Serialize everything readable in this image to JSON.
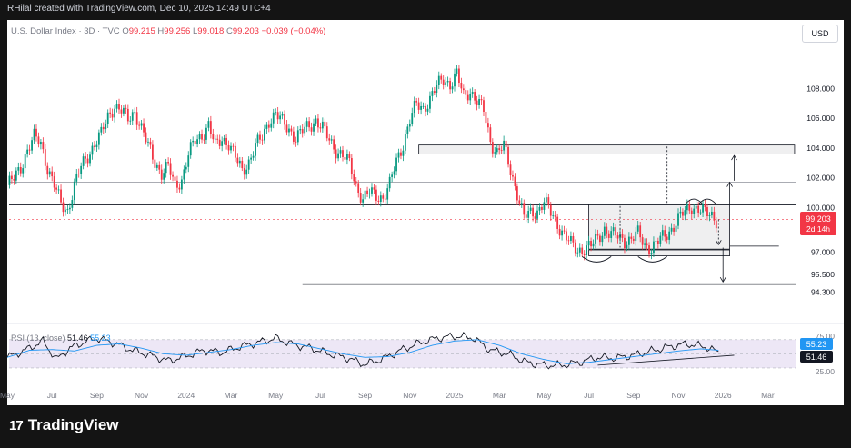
{
  "header": {
    "attribution": "RHilal created with TradingView.com, Dec 10, 2025 14:49 UTC+4"
  },
  "legend": {
    "symbol": "U.S. Dollar Index · 3D · TVC",
    "open_label": "O",
    "open": "99.215",
    "high_label": "H",
    "high": "99.256",
    "low_label": "L",
    "low": "99.018",
    "close_label": "C",
    "close": "99.203",
    "change": "−0.039 (−0.04%)"
  },
  "currency_button": "USD",
  "price_badge": {
    "price": "99.203",
    "countdown": "2d 14h"
  },
  "rsi_legend": {
    "label": "RSI (13, close)",
    "rsi": "51.46",
    "ma": "55.23"
  },
  "rsi_badges": {
    "ma": "55.23",
    "rsi": "51.46"
  },
  "brand": {
    "logo": "17",
    "name": "TradingView"
  },
  "colors": {
    "up": "#089981",
    "down": "#f23645",
    "rsi": "#131722",
    "rsi_ma": "#2196f3",
    "band": "#ede7f6"
  },
  "chart_data": {
    "type": "candlestick",
    "y_axis": {
      "ticks": [
        "108.000",
        "106.000",
        "104.000",
        "102.000",
        "100.000",
        "97.000",
        "95.500",
        "94.300"
      ],
      "tick_values": [
        108,
        106,
        104,
        102,
        100,
        97,
        95.5,
        94.3
      ],
      "ylim": [
        93.3,
        110.9
      ]
    },
    "x_axis": {
      "ticks": [
        "May",
        "Jul",
        "Sep",
        "Nov",
        "2024",
        "Mar",
        "May",
        "Jul",
        "Sep",
        "Nov",
        "2025",
        "Mar",
        "May",
        "Jul",
        "Sep",
        "Nov",
        "2026",
        "Mar"
      ],
      "tick_index": [
        0,
        20,
        40,
        60,
        80,
        100,
        120,
        140,
        160,
        180,
        200,
        220,
        240,
        260,
        280,
        300,
        320,
        340
      ]
    },
    "close_path": [
      [
        0,
        101.5
      ],
      [
        3,
        101.9
      ],
      [
        6,
        102.7
      ],
      [
        9,
        103.9
      ],
      [
        12,
        104.7
      ],
      [
        15,
        104.3
      ],
      [
        18,
        102.7
      ],
      [
        21,
        101.5
      ],
      [
        24,
        100.2
      ],
      [
        27,
        99.8
      ],
      [
        30,
        101.5
      ],
      [
        33,
        102.7
      ],
      [
        36,
        103.5
      ],
      [
        39,
        104.3
      ],
      [
        42,
        104.9
      ],
      [
        45,
        106.1
      ],
      [
        48,
        106.9
      ],
      [
        51,
        106.5
      ],
      [
        54,
        105.9
      ],
      [
        57,
        106.5
      ],
      [
        60,
        105.3
      ],
      [
        63,
        104.1
      ],
      [
        66,
        103.1
      ],
      [
        69,
        102.3
      ],
      [
        72,
        102.7
      ],
      [
        75,
        101.5
      ],
      [
        78,
        101.9
      ],
      [
        81,
        103.5
      ],
      [
        84,
        104.5
      ],
      [
        87,
        104.9
      ],
      [
        90,
        105.5
      ],
      [
        93,
        104.1
      ],
      [
        96,
        104.7
      ],
      [
        99,
        104.3
      ],
      [
        102,
        103.3
      ],
      [
        105,
        102.5
      ],
      [
        108,
        103.1
      ],
      [
        111,
        104.1
      ],
      [
        114,
        104.7
      ],
      [
        117,
        105.9
      ],
      [
        120,
        106.3
      ],
      [
        123,
        105.7
      ],
      [
        126,
        105.3
      ],
      [
        129,
        104.7
      ],
      [
        132,
        105.1
      ],
      [
        135,
        105.5
      ],
      [
        138,
        105.9
      ],
      [
        141,
        105.3
      ],
      [
        144,
        104.5
      ],
      [
        147,
        103.9
      ],
      [
        150,
        103.5
      ],
      [
        153,
        102.9
      ],
      [
        156,
        101.5
      ],
      [
        159,
        100.6
      ],
      [
        162,
        101.0
      ],
      [
        165,
        100.8
      ],
      [
        168,
        100.7
      ],
      [
        171,
        101.5
      ],
      [
        174,
        103.1
      ],
      [
        177,
        104.3
      ],
      [
        180,
        105.9
      ],
      [
        183,
        106.9
      ],
      [
        186,
        106.7
      ],
      [
        189,
        107.3
      ],
      [
        192,
        108.1
      ],
      [
        195,
        108.7
      ],
      [
        198,
        108.3
      ],
      [
        201,
        108.9
      ],
      [
        204,
        107.5
      ],
      [
        207,
        107.9
      ],
      [
        210,
        107.1
      ],
      [
        213,
        106.5
      ],
      [
        216,
        104.5
      ],
      [
        219,
        103.7
      ],
      [
        222,
        104.1
      ],
      [
        225,
        102.5
      ],
      [
        228,
        101.0
      ],
      [
        231,
        99.3
      ],
      [
        234,
        99.6
      ],
      [
        237,
        99.8
      ],
      [
        240,
        100.4
      ],
      [
        243,
        99.6
      ],
      [
        246,
        98.9
      ],
      [
        249,
        98.2
      ],
      [
        252,
        97.5
      ],
      [
        255,
        97.1
      ],
      [
        258,
        97.3
      ],
      [
        261,
        97.4
      ],
      [
        264,
        97.9
      ],
      [
        267,
        98.6
      ],
      [
        270,
        98.2
      ],
      [
        273,
        98.0
      ],
      [
        276,
        97.8
      ],
      [
        279,
        97.9
      ],
      [
        282,
        98.2
      ],
      [
        285,
        97.5
      ],
      [
        288,
        97.3
      ],
      [
        291,
        97.7
      ],
      [
        294,
        98.1
      ],
      [
        297,
        98.6
      ],
      [
        300,
        99.2
      ],
      [
        303,
        99.7
      ],
      [
        306,
        100.1
      ],
      [
        309,
        99.9
      ],
      [
        312,
        99.6
      ],
      [
        315,
        99.5
      ],
      [
        317,
        99.2
      ]
    ],
    "levels": [
      {
        "price": 101.7,
        "style": "thin"
      },
      {
        "price": 100.2,
        "style": "thick"
      },
      {
        "price": 99.203,
        "style": "dashed-current"
      },
      {
        "price": 97.4,
        "style": "thin-short"
      },
      {
        "price": 94.85,
        "style": "thick-short"
      }
    ],
    "zones": [
      {
        "from_index": 184,
        "to_index": 352,
        "bottom": 103.6,
        "top": 104.2
      },
      {
        "from_index": 260,
        "to_index": 323,
        "bottom": 97.2,
        "top": 100.2
      },
      {
        "from_index": 260,
        "to_index": 323,
        "bottom": 96.75,
        "top": 97.15
      }
    ],
    "rsi": {
      "ylim": [
        21,
        80
      ],
      "ticks": [
        "75.00",
        "25.00"
      ],
      "tick_values": [
        75,
        25
      ],
      "band": [
        30,
        70
      ],
      "mid": 50,
      "values": [
        [
          0,
          45
        ],
        [
          8,
          55
        ],
        [
          16,
          68
        ],
        [
          22,
          42
        ],
        [
          28,
          58
        ],
        [
          34,
          66
        ],
        [
          40,
          72
        ],
        [
          48,
          65
        ],
        [
          56,
          55
        ],
        [
          64,
          48
        ],
        [
          72,
          40
        ],
        [
          80,
          47
        ],
        [
          88,
          55
        ],
        [
          96,
          52
        ],
        [
          104,
          60
        ],
        [
          112,
          66
        ],
        [
          120,
          72
        ],
        [
          128,
          63
        ],
        [
          136,
          58
        ],
        [
          144,
          50
        ],
        [
          152,
          44
        ],
        [
          160,
          35
        ],
        [
          168,
          43
        ],
        [
          176,
          55
        ],
        [
          184,
          65
        ],
        [
          192,
          72
        ],
        [
          200,
          75
        ],
        [
          208,
          73
        ],
        [
          216,
          55
        ],
        [
          224,
          50
        ],
        [
          232,
          38
        ],
        [
          240,
          34
        ],
        [
          248,
          34
        ],
        [
          256,
          38
        ],
        [
          264,
          45
        ],
        [
          272,
          44
        ],
        [
          280,
          48
        ],
        [
          288,
          54
        ],
        [
          296,
          60
        ],
        [
          304,
          64
        ],
        [
          312,
          60
        ],
        [
          318,
          52
        ]
      ],
      "ma": [
        [
          0,
          45
        ],
        [
          10,
          55
        ],
        [
          20,
          56
        ],
        [
          30,
          54
        ],
        [
          40,
          62
        ],
        [
          50,
          64
        ],
        [
          60,
          58
        ],
        [
          70,
          50
        ],
        [
          80,
          48
        ],
        [
          90,
          52
        ],
        [
          100,
          56
        ],
        [
          110,
          62
        ],
        [
          120,
          66
        ],
        [
          130,
          64
        ],
        [
          140,
          57
        ],
        [
          150,
          50
        ],
        [
          160,
          45
        ],
        [
          170,
          46
        ],
        [
          180,
          52
        ],
        [
          190,
          62
        ],
        [
          200,
          68
        ],
        [
          210,
          70
        ],
        [
          220,
          62
        ],
        [
          230,
          50
        ],
        [
          240,
          42
        ],
        [
          250,
          36
        ],
        [
          260,
          38
        ],
        [
          270,
          42
        ],
        [
          280,
          46
        ],
        [
          290,
          50
        ],
        [
          300,
          54
        ],
        [
          310,
          57
        ],
        [
          318,
          55
        ]
      ],
      "trendline": [
        [
          264,
          34
        ],
        [
          325,
          48
        ]
      ]
    }
  }
}
